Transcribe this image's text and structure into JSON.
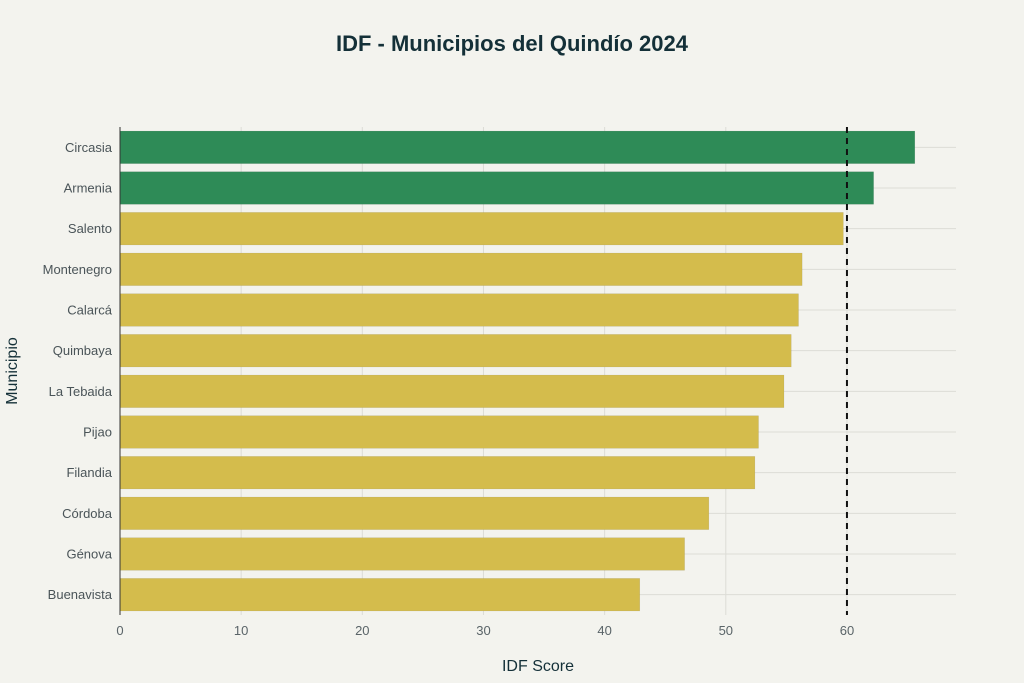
{
  "chart_data": {
    "type": "bar",
    "orientation": "horizontal",
    "title": "IDF - Municipios del Quindío 2024",
    "xlabel": "IDF Score",
    "ylabel": "Municipio",
    "xlim": [
      0,
      69
    ],
    "x_ticks": [
      0,
      10,
      20,
      30,
      40,
      50,
      60
    ],
    "grid": true,
    "reference_line": {
      "value": 60,
      "style": "dashed",
      "color": "#111111"
    },
    "colors": {
      "above": "#2e8b57",
      "below": "#d4bc4c",
      "background": "#f3f3ee"
    },
    "categories": [
      "Circasia",
      "Armenia",
      "Salento",
      "Montenegro",
      "Calarcá",
      "Quimbaya",
      "La Tebaida",
      "Pijao",
      "Filandia",
      "Córdoba",
      "Génova",
      "Buenavista"
    ],
    "values": [
      65.6,
      62.2,
      59.7,
      56.3,
      56.0,
      55.4,
      54.8,
      52.7,
      52.4,
      48.6,
      46.6,
      42.9
    ]
  }
}
